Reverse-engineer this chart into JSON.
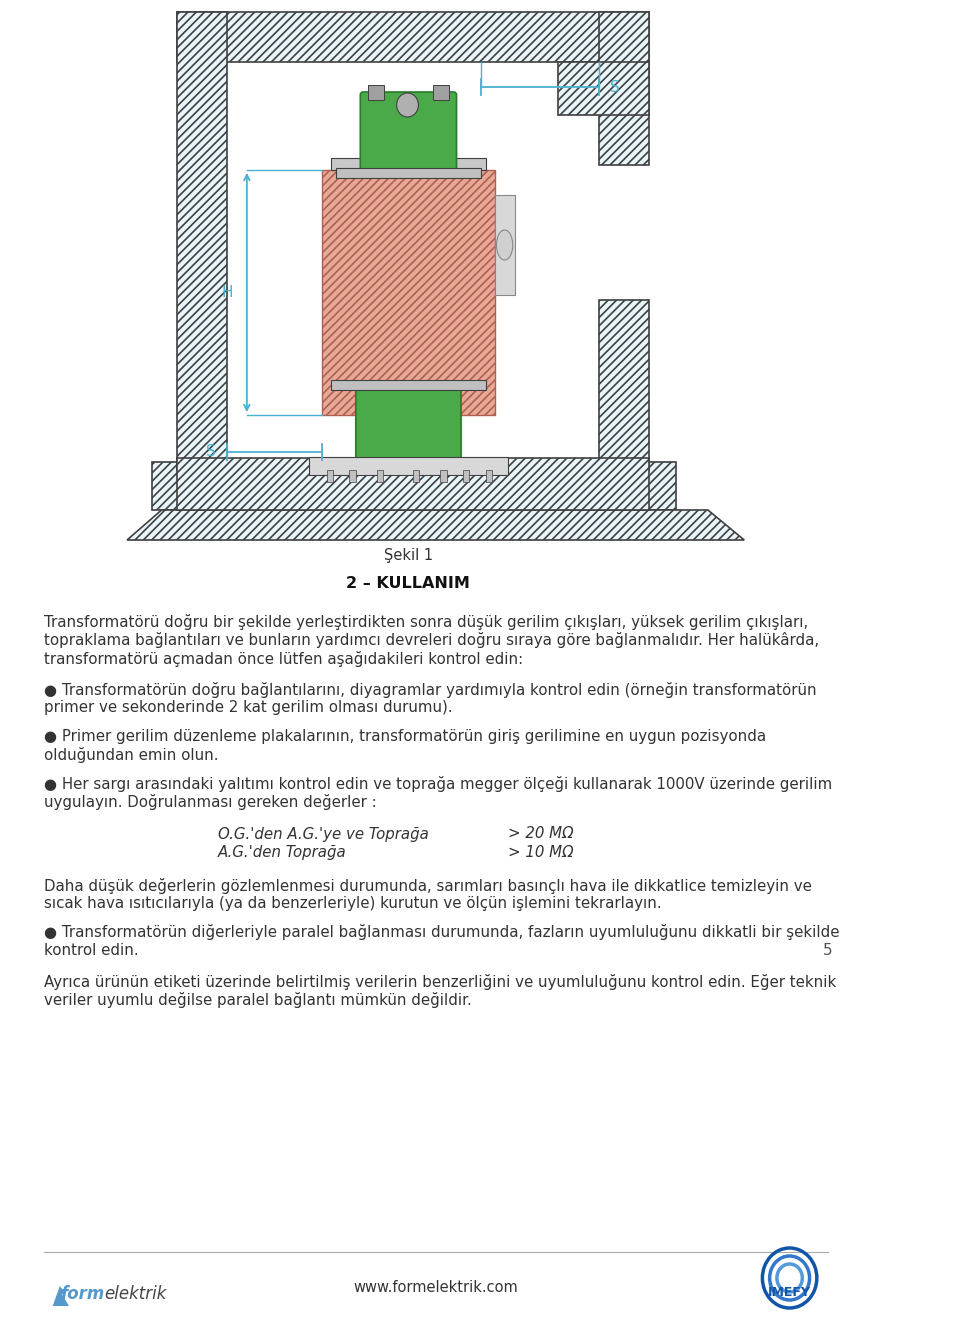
{
  "page_bg": "#ffffff",
  "fig_width": 9.6,
  "fig_height": 13.21,
  "title_sekil": "Şekil 1",
  "title_kullanim": "2 – KULLANIM",
  "para1_line1": "Transformatörü doğru bir şekilde yerleştirdikten sonra düşük gerilim çıkışları, yüksek gerilim çıkışları,",
  "para1_line2": "topraklama bağlantıları ve bunların yardımcı devreleri doğru sıraya göre bağlanmalıdır. Her halükârda,",
  "para1_line3": "transformatörü açmadan önce lütfen aşağıdakileri kontrol edin:",
  "bullet1_line1": "● Transformatörün doğru bağlantılarını, diyagramlar yardımıyla kontrol edin (örneğin transformatörün",
  "bullet1_line2": "primer ve sekonderinde 2 kat gerilim olması durumu).",
  "bullet2_line1": "● Primer gerilim düzenleme plakalarının, transformatörün giriş gerilimine en uygun pozisyonda",
  "bullet2_line2": "olduğundan emin olun.",
  "bullet3_line1": "● Her sargı arasındaki yalıtımı kontrol edin ve toprağa megger ölçeği kullanarak 1000V üzerinde gerilim",
  "bullet3_line2": "uygulayın. Doğrulanması gereken değerler :",
  "table_row1_left": "O.G.'den A.G.'ye ve Toprağa",
  "table_row1_right": "> 20 MΩ",
  "table_row2_left": "A.G.'den Toprağa",
  "table_row2_right": "> 10 MΩ",
  "para2_line1": "Daha düşük değerlerin gözlemlenmesi durumunda, sarımları basınçlı hava ile dikkatlice temizleyin ve",
  "para2_line2": "sıcak hava ısıtıcılarıyla (ya da benzerleriyle) kurutun ve ölçün işlemini tekrarlayın.",
  "bullet4_line1": "● Transformatörün diğerleriyle paralel bağlanması durumunda, fazların uyumluluğunu dikkatli bir şekilde",
  "bullet4_line2": "kontrol edin.",
  "page_number": "5",
  "para3_line1": "Ayrıca ürünün etiketi üzerinde belirtilmiş verilerin benzerliğini ve uyumluluğunu kontrol edin. Eğer teknik",
  "para3_line2": "veriler uyumlu değilse paralel bağlantı mümkün değildir.",
  "footer_url": "www.formelektrik.com",
  "hatch_color_wall": "#7bcde0",
  "hatch_color_body": "#d08070",
  "transformer_body_color": "#e8a898",
  "winding_color": "#4aaa4a",
  "line_color": "#404040",
  "dim_color": "#4ab0d0",
  "wall_bg": "#e8f5fa"
}
